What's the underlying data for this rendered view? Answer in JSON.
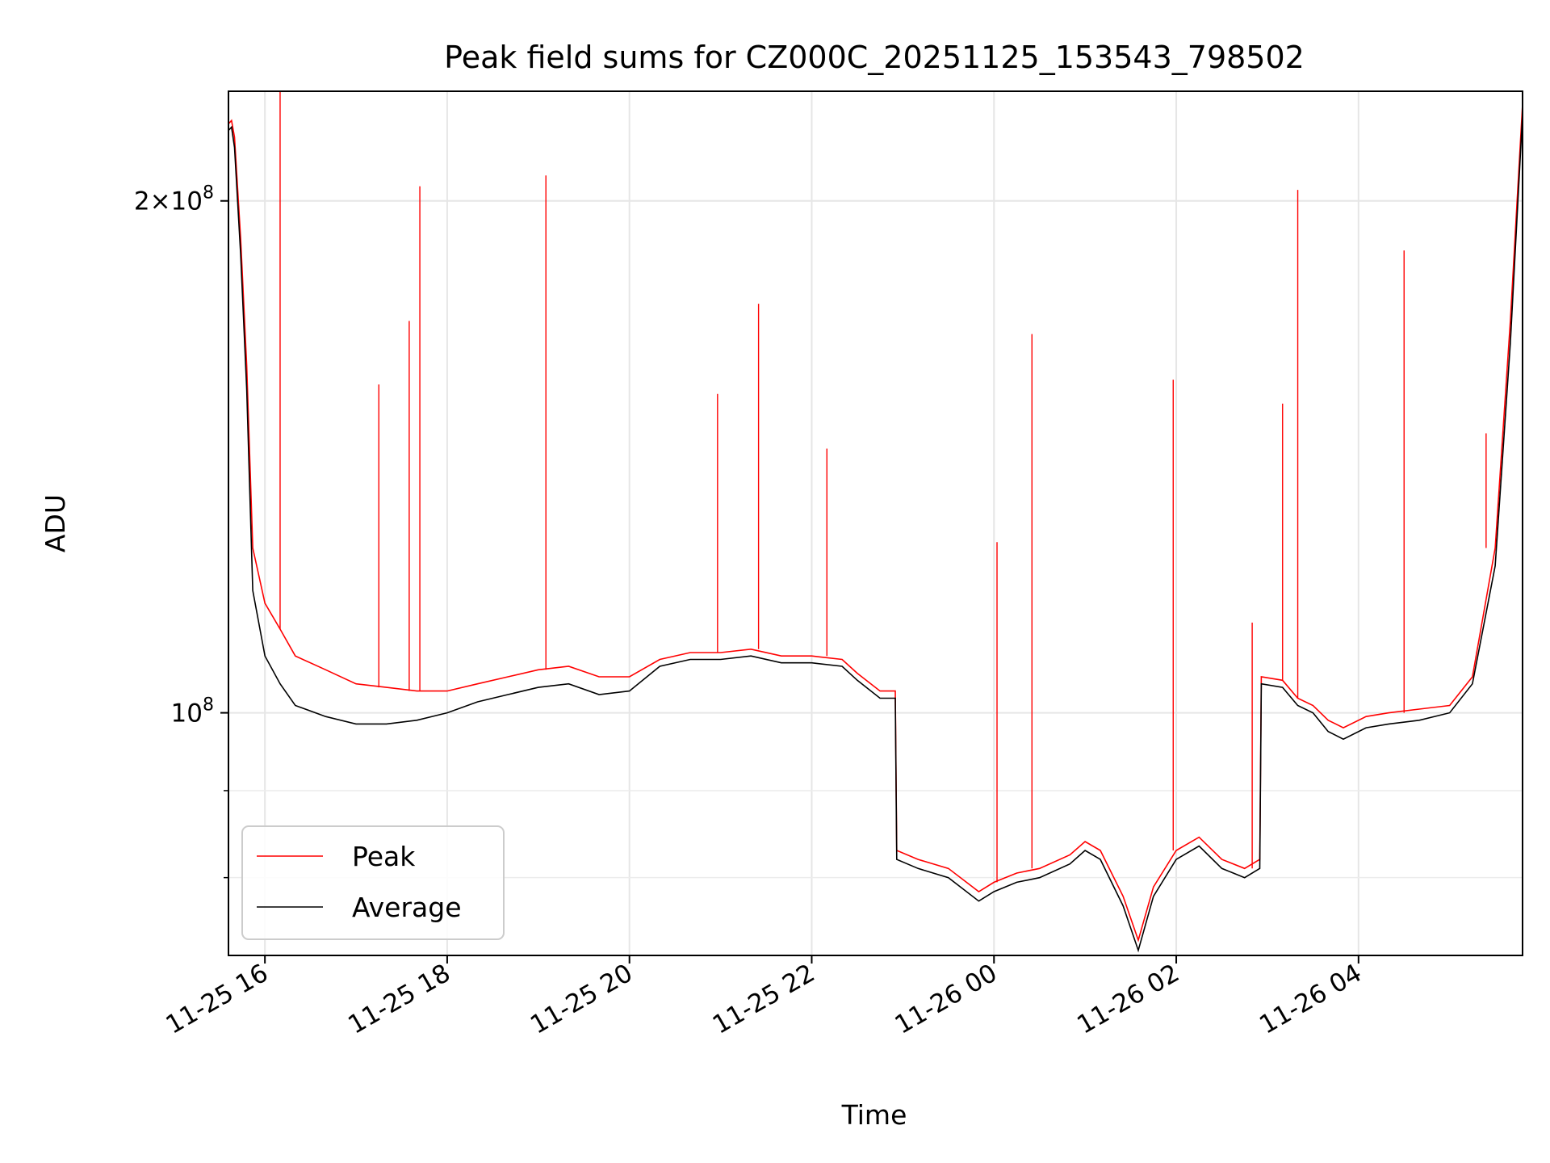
{
  "chart_data": {
    "type": "line",
    "title": "Peak field sums for CZ000C_20251125_153543_798502",
    "xlabel": "Time",
    "ylabel": "ADU",
    "y_scale": "log",
    "xlim": [
      "2025-11-25 15:36",
      "2025-11-26 05:48"
    ],
    "ylim": [
      72000000,
      232000000
    ],
    "grid": true,
    "legend_position": "lower-left",
    "x_ticks": [
      "11-25 16",
      "11-25 18",
      "11-25 20",
      "11-25 22",
      "11-26 00",
      "11-26 02",
      "11-26 04"
    ],
    "x_tick_values": [
      "2025-11-25 16:00",
      "2025-11-25 18:00",
      "2025-11-25 20:00",
      "2025-11-25 22:00",
      "2025-11-26 00:00",
      "2025-11-26 02:00",
      "2025-11-26 04:00"
    ],
    "y_major_ticks": [
      {
        "value": 100000000,
        "mantissa": "",
        "exponent": "8"
      },
      {
        "value": 200000000,
        "mantissa": "2",
        "exponent": "8"
      }
    ],
    "y_minor_ticks": [
      90000000,
      80000000
    ],
    "series": [
      {
        "name": "Peak",
        "color": "#ff0000",
        "x": [
          "2025-11-25 15:36",
          "2025-11-25 15:38",
          "2025-11-25 15:40",
          "2025-11-25 15:44",
          "2025-11-25 15:48",
          "2025-11-25 15:52",
          "2025-11-25 16:00",
          "2025-11-25 16:10",
          "2025-11-25 16:20",
          "2025-11-25 16:40",
          "2025-11-25 17:00",
          "2025-11-25 17:20",
          "2025-11-25 17:40",
          "2025-11-25 18:00",
          "2025-11-25 18:20",
          "2025-11-25 18:40",
          "2025-11-25 19:00",
          "2025-11-25 19:20",
          "2025-11-25 19:40",
          "2025-11-25 20:00",
          "2025-11-25 20:20",
          "2025-11-25 20:40",
          "2025-11-25 21:00",
          "2025-11-25 21:20",
          "2025-11-25 21:40",
          "2025-11-25 22:00",
          "2025-11-25 22:20",
          "2025-11-25 22:30",
          "2025-11-25 22:45",
          "2025-11-25 22:55",
          "2025-11-25 22:56",
          "2025-11-25 23:10",
          "2025-11-25 23:30",
          "2025-11-25 23:50",
          "2025-11-26 00:00",
          "2025-11-26 00:15",
          "2025-11-26 00:30",
          "2025-11-26 00:50",
          "2025-11-26 01:00",
          "2025-11-26 01:10",
          "2025-11-26 01:25",
          "2025-11-26 01:35",
          "2025-11-26 01:45",
          "2025-11-26 02:00",
          "2025-11-26 02:15",
          "2025-11-26 02:30",
          "2025-11-26 02:45",
          "2025-11-26 02:55",
          "2025-11-26 02:56",
          "2025-11-26 03:10",
          "2025-11-26 03:20",
          "2025-11-26 03:30",
          "2025-11-26 03:40",
          "2025-11-26 03:50",
          "2025-11-26 04:05",
          "2025-11-26 04:20",
          "2025-11-26 04:40",
          "2025-11-26 05:00",
          "2025-11-26 05:15",
          "2025-11-26 05:30",
          "2025-11-26 05:40",
          "2025-11-26 05:48"
        ],
        "values": [
          222000000,
          223000000,
          218000000,
          190000000,
          160000000,
          125000000,
          116000000,
          112000000,
          108000000,
          106000000,
          104000000,
          103500000,
          103000000,
          103000000,
          104000000,
          105000000,
          106000000,
          106500000,
          105000000,
          105000000,
          107500000,
          108500000,
          108500000,
          109000000,
          108000000,
          108000000,
          107500000,
          105500000,
          103000000,
          103000000,
          83000000,
          82000000,
          81000000,
          78500000,
          79500000,
          80500000,
          81000000,
          82500000,
          84000000,
          83000000,
          78000000,
          73500000,
          79000000,
          83000000,
          84500000,
          82000000,
          81000000,
          82000000,
          105000000,
          104500000,
          102000000,
          101000000,
          99000000,
          98000000,
          99500000,
          100000000,
          100500000,
          101000000,
          105000000,
          125000000,
          170000000,
          228000000
        ],
        "spikes": [
          {
            "x": "2025-11-25 16:10",
            "value": 232000000
          },
          {
            "x": "2025-11-25 17:42",
            "value": 204000000
          },
          {
            "x": "2025-11-25 19:05",
            "value": 207000000
          },
          {
            "x": "2025-11-25 21:25",
            "value": 174000000
          },
          {
            "x": "2025-11-25 20:58",
            "value": 154000000
          },
          {
            "x": "2025-11-25 17:15",
            "value": 156000000
          },
          {
            "x": "2025-11-25 17:35",
            "value": 170000000
          },
          {
            "x": "2025-11-25 22:10",
            "value": 143000000
          },
          {
            "x": "2025-11-26 00:02",
            "value": 126000000
          },
          {
            "x": "2025-11-26 00:25",
            "value": 167000000
          },
          {
            "x": "2025-11-26 01:58",
            "value": 157000000
          },
          {
            "x": "2025-11-26 03:20",
            "value": 203000000
          },
          {
            "x": "2025-11-26 03:10",
            "value": 152000000
          },
          {
            "x": "2025-11-26 04:30",
            "value": 187000000
          },
          {
            "x": "2025-11-26 05:24",
            "value": 146000000
          },
          {
            "x": "2025-11-26 02:50",
            "value": 113000000
          }
        ]
      },
      {
        "name": "Average",
        "color": "#000000",
        "x": [
          "2025-11-25 15:36",
          "2025-11-25 15:38",
          "2025-11-25 15:40",
          "2025-11-25 15:44",
          "2025-11-25 15:48",
          "2025-11-25 15:52",
          "2025-11-25 16:00",
          "2025-11-25 16:10",
          "2025-11-25 16:20",
          "2025-11-25 16:40",
          "2025-11-25 17:00",
          "2025-11-25 17:20",
          "2025-11-25 17:40",
          "2025-11-25 18:00",
          "2025-11-25 18:20",
          "2025-11-25 18:40",
          "2025-11-25 19:00",
          "2025-11-25 19:20",
          "2025-11-25 19:40",
          "2025-11-25 20:00",
          "2025-11-25 20:20",
          "2025-11-25 20:40",
          "2025-11-25 21:00",
          "2025-11-25 21:20",
          "2025-11-25 21:40",
          "2025-11-25 22:00",
          "2025-11-25 22:20",
          "2025-11-25 22:30",
          "2025-11-25 22:45",
          "2025-11-25 22:55",
          "2025-11-25 22:56",
          "2025-11-25 23:10",
          "2025-11-25 23:30",
          "2025-11-25 23:50",
          "2025-11-26 00:00",
          "2025-11-26 00:15",
          "2025-11-26 00:30",
          "2025-11-26 00:50",
          "2025-11-26 01:00",
          "2025-11-26 01:10",
          "2025-11-26 01:25",
          "2025-11-26 01:35",
          "2025-11-26 01:45",
          "2025-11-26 02:00",
          "2025-11-26 02:15",
          "2025-11-26 02:30",
          "2025-11-26 02:45",
          "2025-11-26 02:55",
          "2025-11-26 02:56",
          "2025-11-26 03:10",
          "2025-11-26 03:20",
          "2025-11-26 03:30",
          "2025-11-26 03:40",
          "2025-11-26 03:50",
          "2025-11-26 04:05",
          "2025-11-26 04:20",
          "2025-11-26 04:40",
          "2025-11-26 05:00",
          "2025-11-26 05:15",
          "2025-11-26 05:30",
          "2025-11-26 05:40",
          "2025-11-26 05:48"
        ],
        "values": [
          220000000,
          221000000,
          215000000,
          186000000,
          155000000,
          118000000,
          108000000,
          104000000,
          101000000,
          99500000,
          98500000,
          98500000,
          99000000,
          100000000,
          101500000,
          102500000,
          103500000,
          104000000,
          102500000,
          103000000,
          106500000,
          107500000,
          107500000,
          108000000,
          107000000,
          107000000,
          106500000,
          104500000,
          102000000,
          102000000,
          82000000,
          81000000,
          80000000,
          77500000,
          78500000,
          79500000,
          80000000,
          81500000,
          83000000,
          82000000,
          77000000,
          72500000,
          78000000,
          82000000,
          83500000,
          81000000,
          80000000,
          81000000,
          104000000,
          103500000,
          101000000,
          100000000,
          97500000,
          96500000,
          98000000,
          98500000,
          99000000,
          100000000,
          104000000,
          122000000,
          165000000,
          225000000
        ]
      }
    ]
  }
}
